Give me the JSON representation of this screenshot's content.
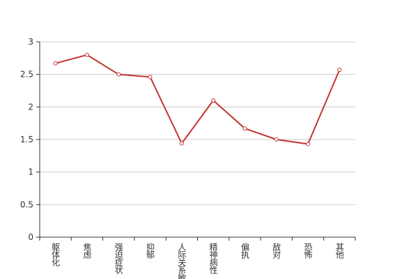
{
  "chart_data": {
    "type": "line",
    "categories": [
      "躯体化",
      "焦虑",
      "强迫症状",
      "抑郁",
      "人际关系敏感",
      "精神病性",
      "偏执",
      "敌对",
      "恐怖",
      "其他"
    ],
    "series": [
      {
        "color": "#c23531",
        "values": [
          2.67,
          2.8,
          2.5,
          2.46,
          1.44,
          2.1,
          1.67,
          1.5,
          1.43,
          2.57
        ]
      }
    ],
    "ylim": [
      0,
      3
    ],
    "yticks": [
      0,
      0.5,
      1,
      1.5,
      2,
      2.5,
      3
    ],
    "grid": true
  }
}
